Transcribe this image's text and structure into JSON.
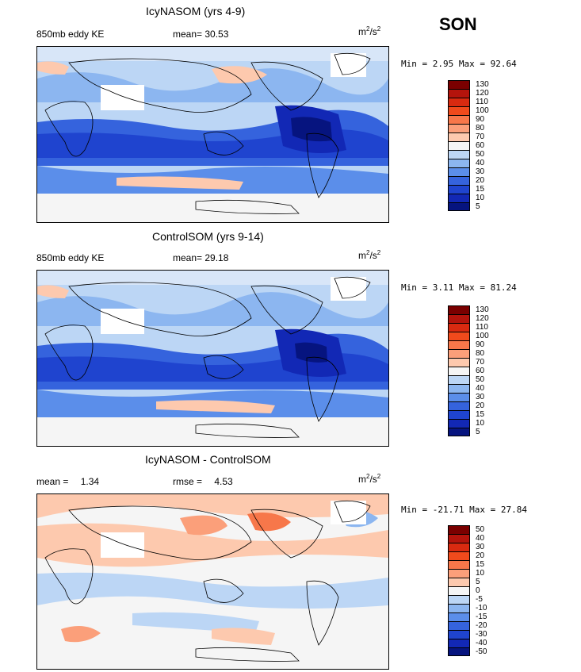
{
  "season": "SON",
  "panels": [
    {
      "title": "IcyNASOM (yrs 4-9)",
      "left_label": "850mb eddy KE",
      "mean_label": "mean=",
      "mean_value": "30.53",
      "units_base": "m",
      "units_exp1": "2",
      "units_mid": "/s",
      "units_exp2": "2",
      "minmax": "Min =   2.95 Max =  92.64",
      "colorbar_ticks": [
        "130",
        "120",
        "110",
        "100",
        "90",
        "80",
        "70",
        "60",
        "50",
        "40",
        "30",
        "20",
        "15",
        "10",
        "5"
      ]
    },
    {
      "title": "ControlSOM (yrs 9-14)",
      "left_label": "850mb eddy KE",
      "mean_label": "mean=",
      "mean_value": "29.18",
      "units_base": "m",
      "units_exp1": "2",
      "units_mid": "/s",
      "units_exp2": "2",
      "minmax": "Min =   3.11 Max =  81.24",
      "colorbar_ticks": [
        "130",
        "120",
        "110",
        "100",
        "90",
        "80",
        "70",
        "60",
        "50",
        "40",
        "30",
        "20",
        "15",
        "10",
        "5"
      ]
    },
    {
      "title": "IcyNASOM - ControlSOM",
      "mean_label": "mean =",
      "mean_value": "1.34",
      "rmse_label": "rmse =",
      "rmse_value": "4.53",
      "units_base": "m",
      "units_exp1": "2",
      "units_mid": "/s",
      "units_exp2": "2",
      "minmax": "Min = -21.71 Max =  27.84",
      "colorbar_ticks": [
        "50",
        "40",
        "30",
        "20",
        "15",
        "10",
        "5",
        "0",
        "-5",
        "-10",
        "-15",
        "-20",
        "-30",
        "-40",
        "-50"
      ]
    }
  ],
  "colors": {
    "abs_scale": [
      "#7a0000",
      "#b4140c",
      "#d92a10",
      "#f04a1c",
      "#f7774a",
      "#fb9f7a",
      "#fdc9ae",
      "#f5f5f5",
      "#bcd6f5",
      "#8cb6f0",
      "#5b8eea",
      "#3563dd",
      "#1f44cf",
      "#1228b5",
      "#06147f"
    ],
    "diff_scale": [
      "#7a0000",
      "#b4140c",
      "#d92a10",
      "#f04a1c",
      "#f7774a",
      "#fb9f7a",
      "#fdc9ae",
      "#f5f5f5",
      "#bcd6f5",
      "#8cb6f0",
      "#5b8eea",
      "#3563dd",
      "#1f44cf",
      "#1228b5",
      "#06147f"
    ]
  }
}
